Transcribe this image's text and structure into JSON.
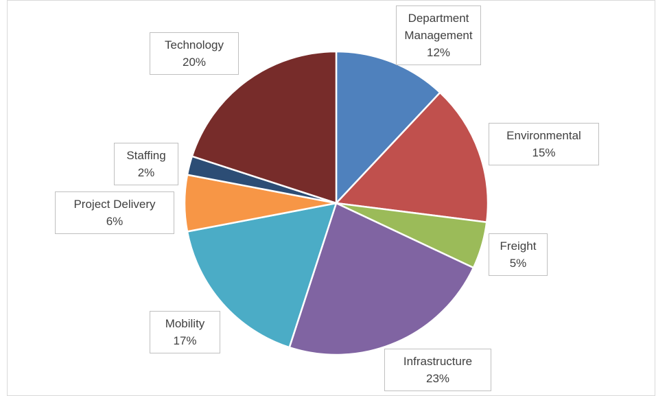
{
  "chart_data": {
    "type": "pie",
    "categories": [
      "Department Management",
      "Environmental",
      "Freight",
      "Infrastructure",
      "Mobility",
      "Project Delivery",
      "Staffing",
      "Technology"
    ],
    "values": [
      12,
      15,
      5,
      23,
      17,
      6,
      2,
      20
    ],
    "value_labels": [
      "12%",
      "15%",
      "5%",
      "23%",
      "17%",
      "6%",
      "2%",
      "20%"
    ],
    "colors": [
      "#4f81bd",
      "#c0504d",
      "#9bbb59",
      "#8064a2",
      "#4bacc6",
      "#f79646",
      "#2c4d75",
      "#772c2a"
    ]
  }
}
